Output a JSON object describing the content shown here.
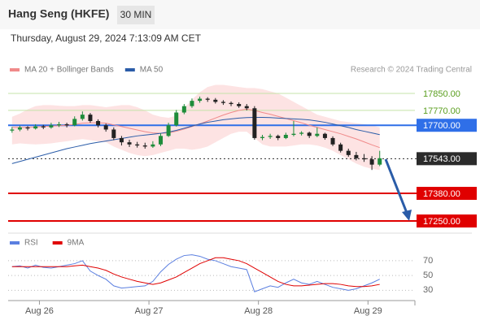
{
  "header": {
    "title": "Hang Seng (HKFE)",
    "timeframe": "30 MIN",
    "datetime": "Thursday, August 29, 2024 7:13:09 AM CET"
  },
  "chart_data": [
    {
      "type": "candlestick",
      "annotation": "Research © 2024 Trading Central",
      "up_color": "#1e8c3a",
      "down_color": "#222222",
      "ylim": [
        17212,
        17930
      ],
      "ohlc": [
        [
          17675,
          17692,
          17665,
          17680
        ],
        [
          17680,
          17698,
          17672,
          17690
        ],
        [
          17690,
          17696,
          17676,
          17685
        ],
        [
          17685,
          17705,
          17680,
          17695
        ],
        [
          17695,
          17702,
          17682,
          17690
        ],
        [
          17690,
          17712,
          17684,
          17700
        ],
        [
          17700,
          17716,
          17692,
          17705
        ],
        [
          17705,
          17712,
          17690,
          17700
        ],
        [
          17700,
          17742,
          17695,
          17730
        ],
        [
          17730,
          17765,
          17722,
          17750
        ],
        [
          17750,
          17758,
          17712,
          17720
        ],
        [
          17720,
          17728,
          17690,
          17700
        ],
        [
          17700,
          17708,
          17670,
          17680
        ],
        [
          17680,
          17690,
          17630,
          17640
        ],
        [
          17640,
          17650,
          17605,
          17620
        ],
        [
          17620,
          17632,
          17598,
          17610
        ],
        [
          17610,
          17622,
          17595,
          17605
        ],
        [
          17605,
          17618,
          17590,
          17600
        ],
        [
          17600,
          17625,
          17594,
          17610
        ],
        [
          17610,
          17662,
          17602,
          17650
        ],
        [
          17650,
          17712,
          17645,
          17700
        ],
        [
          17700,
          17772,
          17694,
          17760
        ],
        [
          17760,
          17800,
          17752,
          17790
        ],
        [
          17790,
          17826,
          17782,
          17815
        ],
        [
          17815,
          17835,
          17806,
          17825
        ],
        [
          17825,
          17832,
          17810,
          17820
        ],
        [
          17820,
          17828,
          17802,
          17810
        ],
        [
          17810,
          17818,
          17796,
          17805
        ],
        [
          17805,
          17812,
          17790,
          17800
        ],
        [
          17800,
          17808,
          17782,
          17790
        ],
        [
          17790,
          17800,
          17770,
          17780
        ],
        [
          17780,
          17790,
          17632,
          17640
        ],
        [
          17640,
          17655,
          17630,
          17645
        ],
        [
          17645,
          17660,
          17636,
          17650
        ],
        [
          17650,
          17656,
          17630,
          17640
        ],
        [
          17640,
          17665,
          17635,
          17655
        ],
        [
          17655,
          17720,
          17648,
          17660
        ],
        [
          17660,
          17672,
          17652,
          17665
        ],
        [
          17665,
          17670,
          17640,
          17650
        ],
        [
          17650,
          17690,
          17644,
          17660
        ],
        [
          17660,
          17665,
          17632,
          17640
        ],
        [
          17640,
          17648,
          17602,
          17610
        ],
        [
          17610,
          17618,
          17572,
          17580
        ],
        [
          17580,
          17590,
          17552,
          17560
        ],
        [
          17560,
          17575,
          17535,
          17545
        ],
        [
          17545,
          17565,
          17528,
          17540
        ],
        [
          17540,
          17555,
          17490,
          17515
        ],
        [
          17515,
          17580,
          17508,
          17545
        ]
      ],
      "series": [
        {
          "name": "MA 20 + Bollinger Bands",
          "color": "#f08a8a",
          "band_color": "#fde3e3",
          "values": [
            17690,
            17690,
            17690,
            17692,
            17694,
            17696,
            17698,
            17700,
            17704,
            17710,
            17712,
            17712,
            17710,
            17702,
            17694,
            17686,
            17678,
            17670,
            17664,
            17662,
            17664,
            17672,
            17682,
            17694,
            17706,
            17720,
            17734,
            17748,
            17760,
            17770,
            17776,
            17770,
            17760,
            17752,
            17742,
            17732,
            17722,
            17712,
            17700,
            17690,
            17680,
            17670,
            17660,
            17648,
            17636,
            17622,
            17608,
            17595
          ],
          "upper": [
            17740,
            17755,
            17775,
            17790,
            17795,
            17795,
            17792,
            17790,
            17790,
            17795,
            17795,
            17790,
            17785,
            17790,
            17795,
            17795,
            17785,
            17770,
            17750,
            17740,
            17735,
            17745,
            17780,
            17820,
            17855,
            17880,
            17890,
            17890,
            17885,
            17880,
            17875,
            17875,
            17870,
            17860,
            17850,
            17830,
            17810,
            17790,
            17770,
            17750,
            17740,
            17730,
            17720,
            17715,
            17710,
            17705,
            17700,
            17690
          ],
          "lower": [
            17610,
            17615,
            17612,
            17610,
            17612,
            17615,
            17620,
            17625,
            17630,
            17635,
            17630,
            17625,
            17620,
            17600,
            17585,
            17570,
            17560,
            17555,
            17560,
            17570,
            17580,
            17590,
            17590,
            17585,
            17590,
            17600,
            17620,
            17640,
            17660,
            17670,
            17670,
            17640,
            17610,
            17600,
            17600,
            17600,
            17605,
            17610,
            17610,
            17605,
            17595,
            17580,
            17560,
            17540,
            17520,
            17505,
            17495,
            17490
          ]
        },
        {
          "name": "MA 50",
          "color": "#2a5ca8",
          "values": [
            17520,
            17530,
            17540,
            17550,
            17560,
            17570,
            17580,
            17590,
            17598,
            17606,
            17614,
            17620,
            17626,
            17632,
            17638,
            17644,
            17650,
            17654,
            17658,
            17662,
            17668,
            17676,
            17686,
            17696,
            17706,
            17714,
            17720,
            17726,
            17730,
            17734,
            17736,
            17737,
            17737,
            17736,
            17734,
            17732,
            17730,
            17728,
            17725,
            17720,
            17714,
            17706,
            17698,
            17690,
            17680,
            17672,
            17664,
            17656
          ]
        }
      ],
      "levels": [
        {
          "value": 17850,
          "label": "17850.00",
          "color": "#8cc63f",
          "style": "text"
        },
        {
          "value": 17770,
          "label": "17770.00",
          "color": "#8cc63f",
          "style": "text"
        },
        {
          "value": 17700,
          "label": "17700.00",
          "color": "#2f6fe8",
          "style": "box"
        },
        {
          "value": 17543,
          "label": "17543.00",
          "color": "#2b2b2b",
          "style": "dotted"
        },
        {
          "value": 17380,
          "label": "17380.00",
          "color": "#e00000",
          "style": "box"
        },
        {
          "value": 17250,
          "label": "17250.00",
          "color": "#e00000",
          "style": "box"
        }
      ]
    },
    {
      "type": "line",
      "ylim": [
        15,
        82
      ],
      "yticks": [
        70,
        50,
        30
      ],
      "xlim": [
        0,
        52
      ],
      "xticks": [
        {
          "value": 4,
          "label": "Aug 26"
        },
        {
          "value": 18,
          "label": "Aug 27"
        },
        {
          "value": 32,
          "label": "Aug 28"
        },
        {
          "value": 46,
          "label": "Aug 29"
        }
      ],
      "series": [
        {
          "name": "RSI",
          "color": "#5b7fe0",
          "values": [
            62,
            63,
            60,
            64,
            61,
            60,
            62,
            64,
            66,
            70,
            56,
            50,
            45,
            36,
            33,
            34,
            35,
            36,
            42,
            55,
            65,
            72,
            77,
            78,
            76,
            72,
            70,
            66,
            62,
            60,
            58,
            28,
            32,
            36,
            34,
            40,
            45,
            40,
            38,
            42,
            38,
            34,
            32,
            30,
            32,
            36,
            40,
            45
          ]
        },
        {
          "name": "9MA",
          "color": "#e00000",
          "values": [
            62,
            62,
            62,
            62,
            62,
            62,
            62,
            62,
            63,
            64,
            62,
            60,
            57,
            52,
            48,
            45,
            42,
            40,
            38,
            40,
            44,
            48,
            54,
            60,
            66,
            70,
            74,
            74,
            72,
            70,
            66,
            60,
            54,
            48,
            42,
            38,
            36,
            36,
            37,
            38,
            39,
            39,
            38,
            36,
            35,
            35,
            36,
            38
          ]
        }
      ]
    }
  ]
}
